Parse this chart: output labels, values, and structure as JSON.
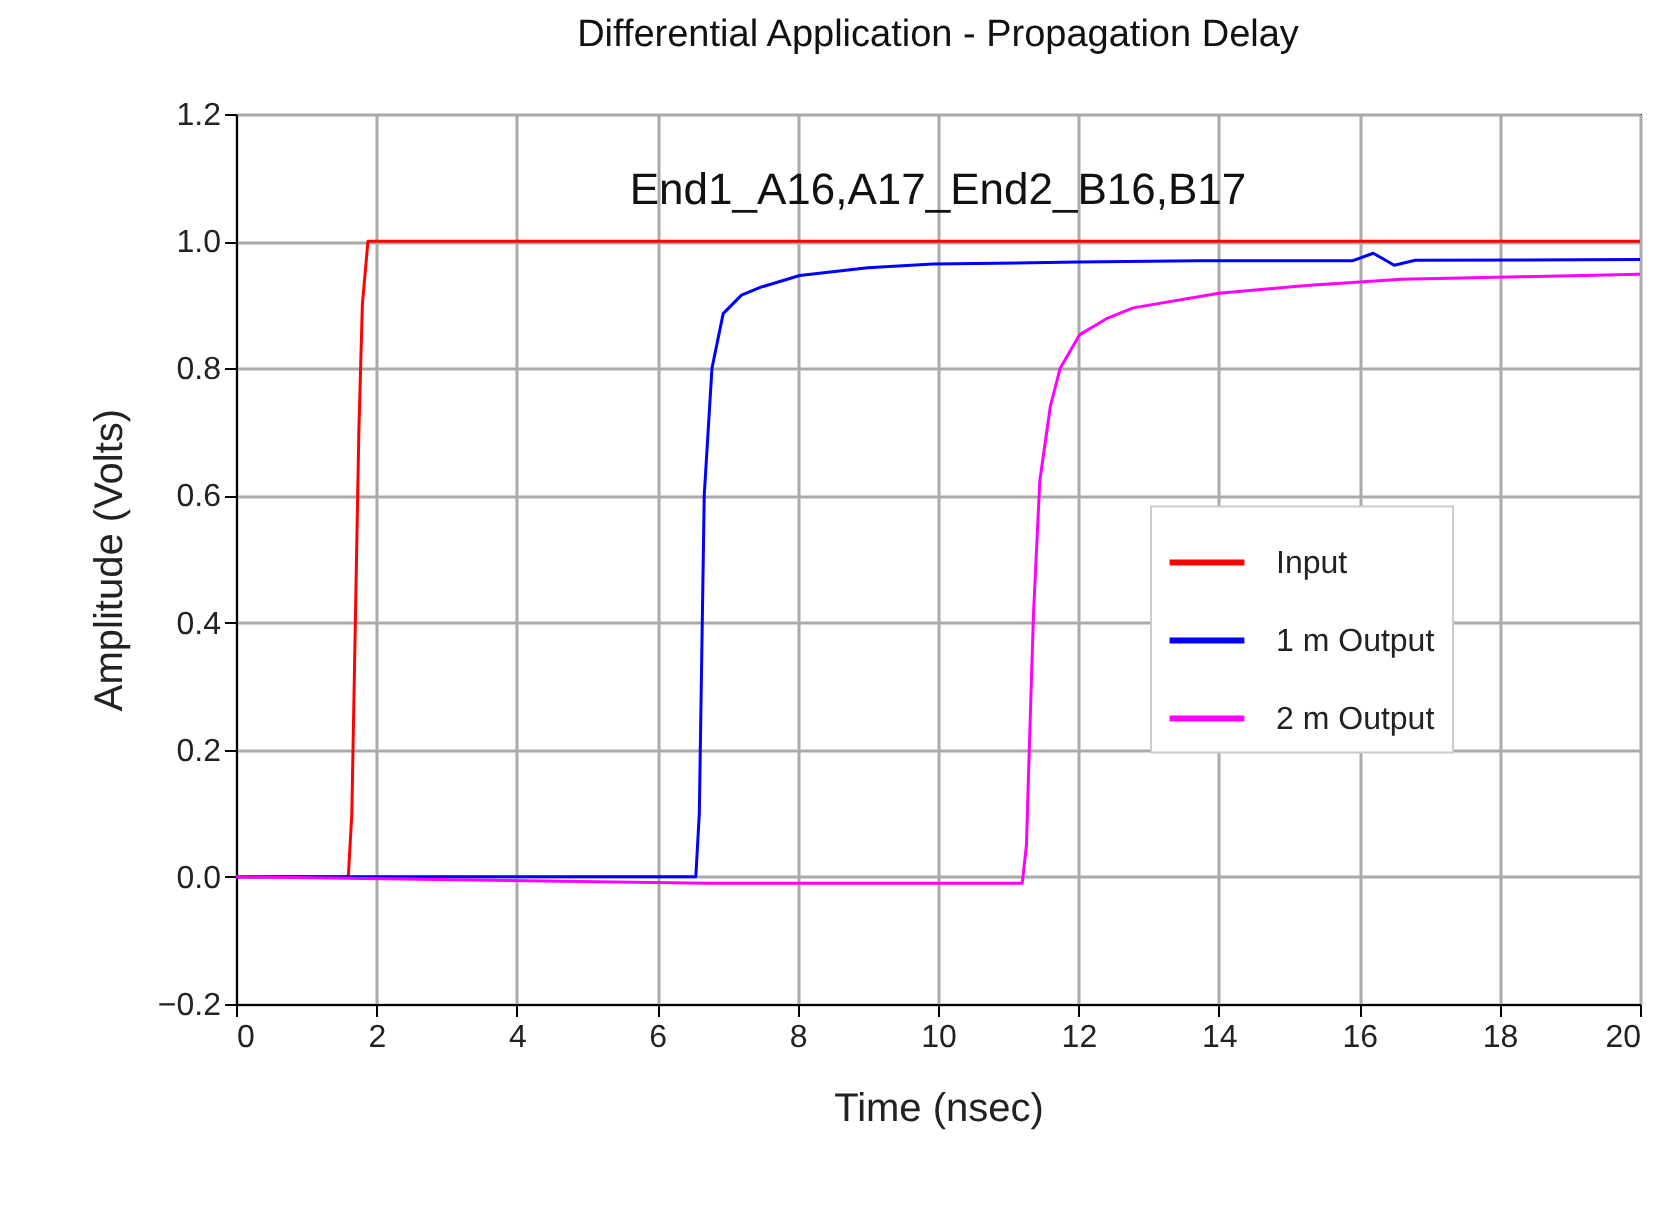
{
  "chart_data": {
    "type": "line",
    "title": "Differential Application - Propagation Delay",
    "xlabel": "Time (nsec)",
    "ylabel": "Amplitude (Volts)",
    "annotations": [
      "End1_A16,A17_End2_B16,B17"
    ],
    "xlim": [
      0,
      20
    ],
    "xticks": [
      0,
      2,
      4,
      6,
      8,
      10,
      12,
      14,
      16,
      18,
      20
    ],
    "ylim": [
      -0.2,
      1.2
    ],
    "yticks": [
      -0.2,
      {
        "value": 0,
        "label": "0.0"
      },
      0.2,
      0.4,
      0.6,
      0.8,
      {
        "value": 1,
        "label": "1.0"
      },
      1.2
    ],
    "grid": true,
    "legend": "right",
    "line_style": "solid",
    "marker": "none",
    "series": [
      {
        "name": "Input",
        "color": "#ff0000",
        "x": [
          0,
          1.6,
          1.65,
          1.7,
          1.75,
          1.8,
          1.88,
          20
        ],
        "values": [
          0,
          0,
          0.1,
          0.4,
          0.7,
          0.9,
          1.0,
          1.0
        ]
      },
      {
        "name": "1 m Output",
        "color": "#0000ff",
        "x": [
          0,
          6.55,
          6.6,
          6.67,
          6.78,
          6.94,
          7.2,
          7.46,
          8.03,
          9.0,
          9.93,
          12,
          13.7,
          15.9,
          16.2,
          16.5,
          16.8,
          20
        ],
        "values": [
          0,
          0,
          0.1,
          0.6,
          0.8,
          0.886,
          0.915,
          0.927,
          0.946,
          0.958,
          0.964,
          0.967,
          0.969,
          0.969,
          0.981,
          0.962,
          0.97,
          0.971
        ]
      },
      {
        "name": "2 m Output",
        "color": "#ff00ff",
        "x": [
          0,
          6.7,
          11.2,
          11.26,
          11.3,
          11.36,
          11.45,
          11.6,
          11.74,
          12.02,
          12.4,
          12.78,
          14.0,
          15.2,
          16.6,
          18.3,
          20
        ],
        "values": [
          0,
          -0.01,
          -0.01,
          0.05,
          0.2,
          0.413,
          0.623,
          0.74,
          0.8,
          0.853,
          0.878,
          0.895,
          0.918,
          0.93,
          0.94,
          0.944,
          0.948
        ]
      }
    ]
  }
}
